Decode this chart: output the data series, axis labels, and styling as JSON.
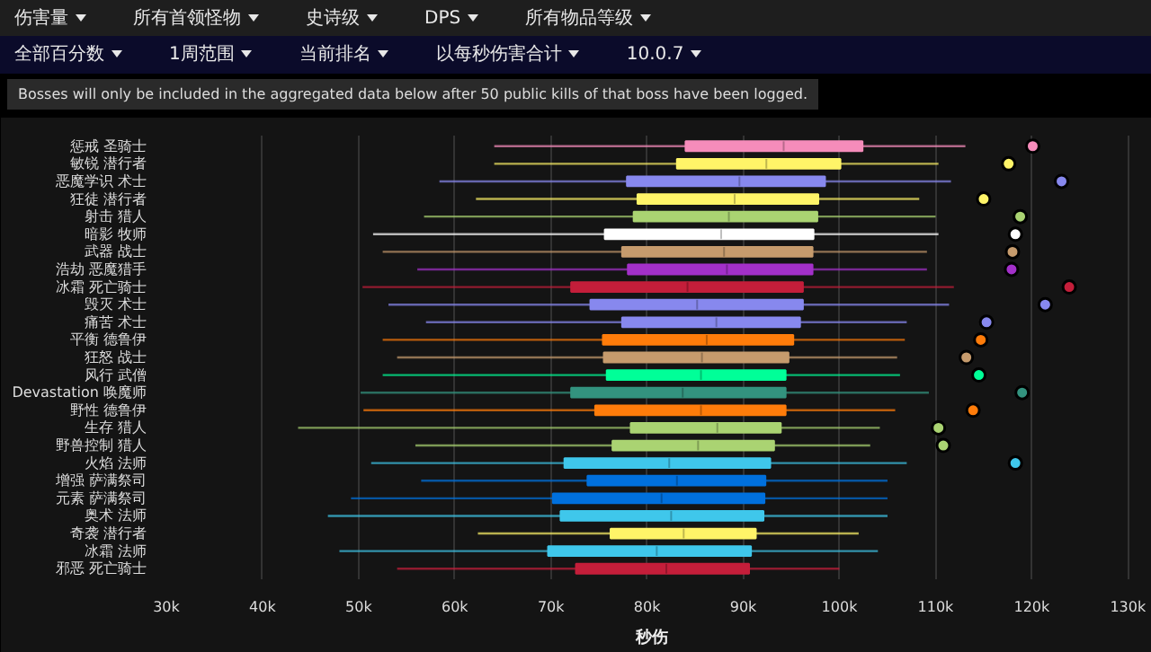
{
  "chart_data": {
    "type": "box",
    "orientation": "horizontal",
    "xlabel": "秒伤",
    "annotations": [
      "伤害量",
      "所有首领怪物",
      "史诗级",
      "DPS",
      "所有物品等级",
      "全部百分数",
      "1周范围",
      "当前排名",
      "以每秒伤害合计",
      "10.0.7",
      "Bosses will only be included in the aggregated data below after 50 public kills of that boss have been logged."
    ],
    "categories": [
      "惩戒 圣骑士",
      "敏锐 潜行者",
      "恶魔学识 术士",
      "狂徒 潜行者",
      "射击 猎人",
      "暗影 牧师",
      "武器 战士",
      "浩劫 恶魔猎手",
      "冰霜 死亡骑士",
      "毁灭 术士",
      "痛苦 术士",
      "平衡 德鲁伊",
      "狂怒 战士",
      "风行 武僧",
      "Devastation 唤魔师",
      "野性 德鲁伊",
      "生存 猎人",
      "野兽控制 猎人",
      "火焰 法师",
      "增强 萨满祭司",
      "元素 萨满祭司",
      "奥术 法师",
      "奇袭 潜行者",
      "冰霜 法师",
      "邪恶 死亡骑士"
    ],
    "colors": [
      "#f58cba",
      "#fff468",
      "#8788ee",
      "#fff468",
      "#aad372",
      "#ffffff",
      "#c69b6d",
      "#a330c9",
      "#c41e3a",
      "#8788ee",
      "#8788ee",
      "#ff7c0a",
      "#c69b6d",
      "#00ff98",
      "#33937f",
      "#ff7c0a",
      "#aad372",
      "#aad372",
      "#3fc7eb",
      "#0070dd",
      "#0070dd",
      "#3fc7eb",
      "#fff468",
      "#3fc7eb",
      "#c41e3a"
    ],
    "boxes": [
      {
        "low": 64100,
        "q1": 84000,
        "median": 94200,
        "q3": 102400,
        "high": 113100,
        "outliers": [
          120100
        ]
      },
      {
        "low": 64100,
        "q1": 83100,
        "median": 92400,
        "q3": 100100,
        "high": 110300,
        "outliers": [
          117600
        ]
      },
      {
        "low": 58400,
        "q1": 77900,
        "median": 89600,
        "q3": 98500,
        "high": 111600,
        "outliers": [
          123100
        ]
      },
      {
        "low": 62200,
        "q1": 79000,
        "median": 89100,
        "q3": 97800,
        "high": 108300,
        "outliers": [
          115000
        ]
      },
      {
        "low": 56800,
        "q1": 78600,
        "median": 88500,
        "q3": 97700,
        "high": 110000,
        "outliers": [
          118800
        ]
      },
      {
        "low": 51500,
        "q1": 75600,
        "median": 87700,
        "q3": 97300,
        "high": 110300,
        "outliers": [
          118300
        ]
      },
      {
        "low": 52500,
        "q1": 77400,
        "median": 88000,
        "q3": 97200,
        "high": 109100,
        "outliers": [
          118000
        ]
      },
      {
        "low": 56100,
        "q1": 78000,
        "median": 88300,
        "q3": 97200,
        "high": 109100,
        "outliers": [
          117900
        ]
      },
      {
        "low": 50400,
        "q1": 72100,
        "median": 84200,
        "q3": 96200,
        "high": 111900,
        "outliers": [
          123900
        ]
      },
      {
        "low": 53100,
        "q1": 74100,
        "median": 85200,
        "q3": 96200,
        "high": 111400,
        "outliers": [
          121400
        ]
      },
      {
        "low": 57000,
        "q1": 77400,
        "median": 87200,
        "q3": 95900,
        "high": 107000,
        "outliers": [
          115300
        ]
      },
      {
        "low": 52500,
        "q1": 75400,
        "median": 86200,
        "q3": 95200,
        "high": 106800,
        "outliers": [
          114700
        ]
      },
      {
        "low": 54000,
        "q1": 75500,
        "median": 85700,
        "q3": 94700,
        "high": 106000,
        "outliers": [
          113200
        ]
      },
      {
        "low": 52500,
        "q1": 75800,
        "median": 85600,
        "q3": 94400,
        "high": 106300,
        "outliers": [
          114500
        ]
      },
      {
        "low": 50200,
        "q1": 72100,
        "median": 83700,
        "q3": 94400,
        "high": 109300,
        "outliers": [
          119000
        ]
      },
      {
        "low": 50500,
        "q1": 74600,
        "median": 85600,
        "q3": 94400,
        "high": 105800,
        "outliers": [
          113900
        ]
      },
      {
        "low": 43700,
        "q1": 78300,
        "median": 87300,
        "q3": 93900,
        "high": 104200,
        "outliers": [
          110300
        ]
      },
      {
        "low": 55900,
        "q1": 76400,
        "median": 85300,
        "q3": 93200,
        "high": 103200,
        "outliers": [
          110800
        ]
      },
      {
        "low": 51300,
        "q1": 71400,
        "median": 82300,
        "q3": 92800,
        "high": 107000,
        "outliers": [
          118300
        ]
      },
      {
        "low": 56500,
        "q1": 73800,
        "median": 83100,
        "q3": 92300,
        "high": 105000
      },
      {
        "low": 49200,
        "q1": 70200,
        "median": 81500,
        "q3": 92200,
        "high": 105000
      },
      {
        "low": 46800,
        "q1": 71000,
        "median": 82500,
        "q3": 92100,
        "high": 105000
      },
      {
        "low": 62400,
        "q1": 76200,
        "median": 83800,
        "q3": 91300,
        "high": 102000
      },
      {
        "low": 48000,
        "q1": 69700,
        "median": 81000,
        "q3": 90800,
        "high": 104000
      },
      {
        "low": 54000,
        "q1": 72600,
        "median": 82000,
        "q3": 90600,
        "high": 100000
      }
    ],
    "xlim": [
      30000,
      131000
    ],
    "xticks": [
      {
        "value": 30000,
        "label": "30k"
      },
      {
        "value": 40000,
        "label": "40k"
      },
      {
        "value": 50000,
        "label": "50k"
      },
      {
        "value": 60000,
        "label": "60k"
      },
      {
        "value": 70000,
        "label": "70k"
      },
      {
        "value": 80000,
        "label": "80k"
      },
      {
        "value": 90000,
        "label": "90k"
      },
      {
        "value": 100000,
        "label": "100k"
      },
      {
        "value": 110000,
        "label": "110k"
      },
      {
        "value": 120000,
        "label": "120k"
      },
      {
        "value": 130000,
        "label": "130k"
      }
    ],
    "grid": "x"
  }
}
